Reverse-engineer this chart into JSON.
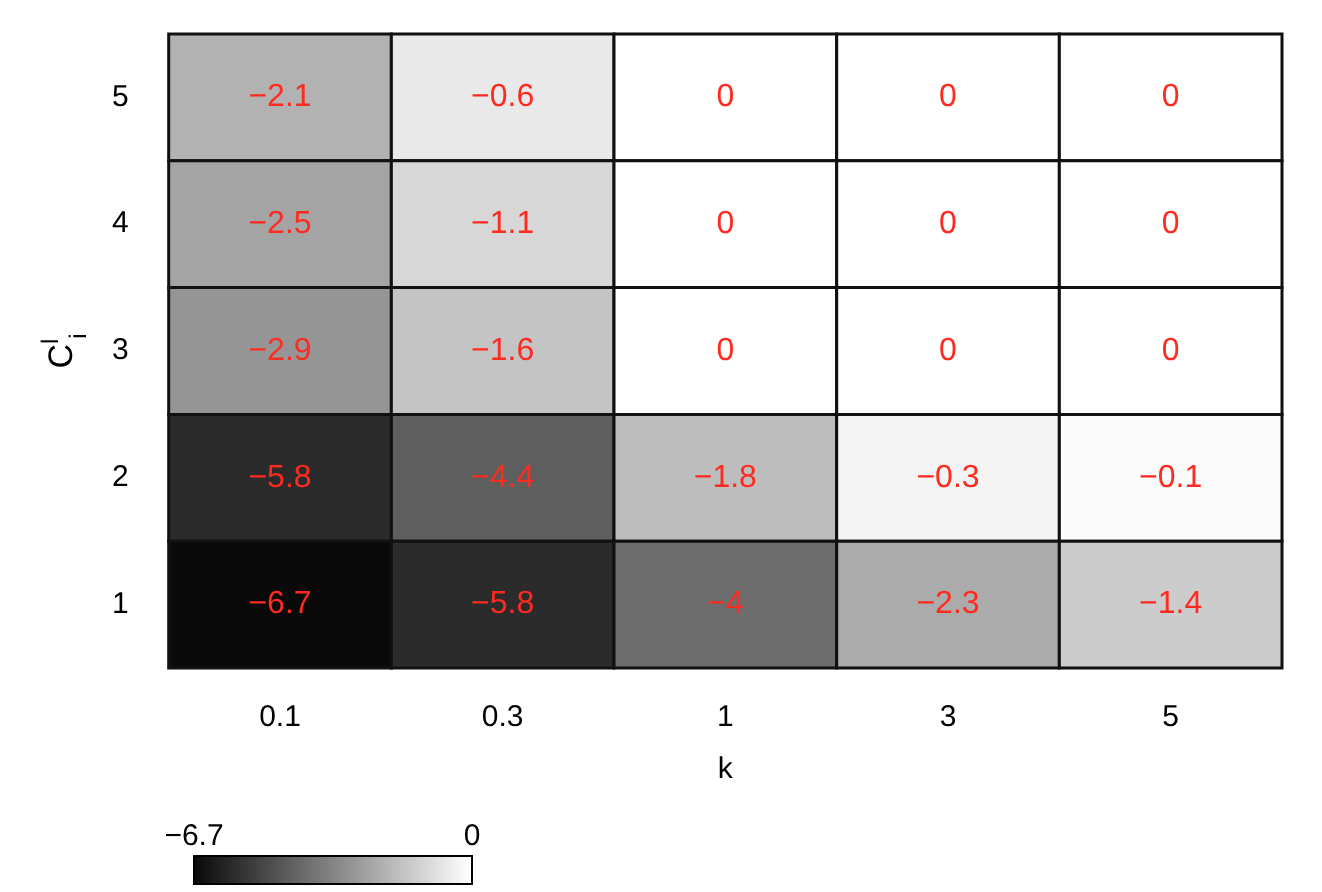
{
  "chart_data": {
    "type": "heatmap",
    "xlabel": "k",
    "ylabel": "C$^{l}$$_{i}$",
    "categories": [
      "0.1",
      "0.3",
      "1",
      "3",
      "5"
    ],
    "y_categories": [
      "5",
      "4",
      "3",
      "2",
      "1"
    ],
    "cells": [
      [
        -2.1,
        -0.6,
        0,
        0,
        0
      ],
      [
        -2.5,
        -1.1,
        0,
        0,
        0
      ],
      [
        -2.9,
        -1.6,
        0,
        0,
        0
      ],
      [
        -5.8,
        -4.4,
        -1.8,
        -0.3,
        -0.1
      ],
      [
        -6.7,
        -5.8,
        -4,
        -2.3,
        -1.4
      ]
    ],
    "clim": [
      -6.7,
      0
    ],
    "cticks": [
      -6.7,
      0
    ],
    "data_labels": true
  }
}
